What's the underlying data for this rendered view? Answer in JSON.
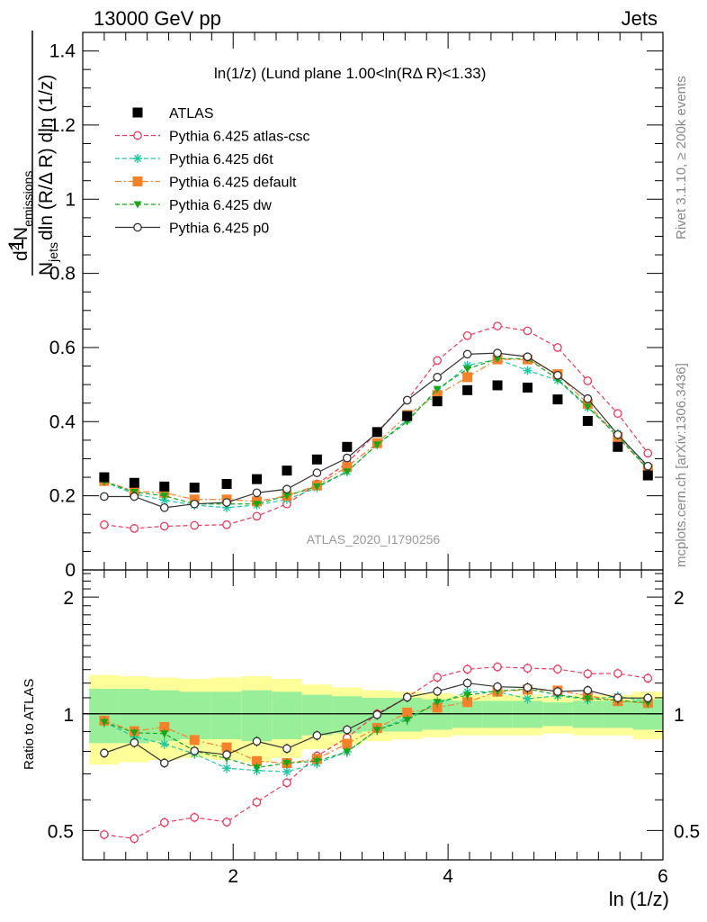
{
  "header": {
    "left": "13000 GeV pp",
    "right": "Jets"
  },
  "plot_title": "ln(1/z) (Lund plane 1.00<ln(RΔ R)<1.33)",
  "y_label": "1 / N_jets dln (R/Δ R) dln (1/z) · d² N_emissions",
  "y_label_parts": {
    "one": "1",
    "njets": "N",
    "njets_sub": "jets",
    "den_rest": "dln (R/Δ R) dln (1/z)",
    "d2": "d",
    "d2_sup": "2",
    "nem": "N",
    "nem_sub": "emissions"
  },
  "x_label": "ln (1/z)",
  "ratio_label": "Ratio to ATLAS",
  "side_text_top": "Rivet 3.1.10, ≥ 200k events",
  "side_text_bottom": "mcplots.cern.ch [arXiv:1306.3436]",
  "watermark": "ATLAS_2020_I1790256",
  "chart_data": {
    "type": "scatter",
    "x": [
      0.8,
      1.08,
      1.36,
      1.64,
      1.94,
      2.22,
      2.5,
      2.78,
      3.06,
      3.34,
      3.62,
      3.9,
      4.18,
      4.46,
      4.74,
      5.02,
      5.3,
      5.58,
      5.86
    ],
    "xlim": [
      0.6,
      6.0
    ],
    "ylim": [
      0,
      1.45
    ],
    "ratio_ylim": [
      0.42,
      2.35
    ],
    "x_ticks": [
      2,
      4,
      6
    ],
    "y_ticks": [
      0,
      0.2,
      0.4,
      0.6,
      0.8,
      1,
      1.2,
      1.4
    ],
    "y_tick_labels": [
      "0",
      "0.2",
      "0.4",
      "0.6",
      "0.8",
      "1",
      "1.2",
      "1.4"
    ],
    "ratio_ticks": [
      0.5,
      1,
      2
    ],
    "ratio_tick_labels": [
      "0.5",
      "1",
      "2"
    ],
    "ratio_band_inner": [
      0.16,
      0.16,
      0.15,
      0.14,
      0.14,
      0.15,
      0.14,
      0.12,
      0.11,
      0.1,
      0.1,
      0.09,
      0.08,
      0.08,
      0.08,
      0.07,
      0.08,
      0.08,
      0.09
    ],
    "ratio_band_outer": [
      0.26,
      0.25,
      0.24,
      0.23,
      0.24,
      0.25,
      0.23,
      0.19,
      0.17,
      0.15,
      0.14,
      0.13,
      0.12,
      0.12,
      0.12,
      0.11,
      0.12,
      0.12,
      0.14
    ],
    "legend_position": "top-left",
    "series": [
      {
        "name": "ATLAS",
        "color": "#000000",
        "marker": "square",
        "line": "none",
        "values": [
          0.25,
          0.235,
          0.225,
          0.222,
          0.232,
          0.245,
          0.268,
          0.298,
          0.332,
          0.372,
          0.415,
          0.455,
          0.485,
          0.498,
          0.492,
          0.46,
          0.402,
          0.332,
          0.255
        ]
      },
      {
        "name": "Pythia 6.425 atlas-csc",
        "color": "#e8395e",
        "marker": "open-circle",
        "line": "dashed",
        "values": [
          0.122,
          0.112,
          0.118,
          0.12,
          0.122,
          0.145,
          0.178,
          0.232,
          0.288,
          0.372,
          0.458,
          0.565,
          0.632,
          0.658,
          0.645,
          0.6,
          0.51,
          0.422,
          0.315
        ]
      },
      {
        "name": "Pythia 6.425 d6t",
        "color": "#1fc7a4",
        "marker": "star",
        "line": "dashed",
        "values": [
          0.238,
          0.205,
          0.188,
          0.175,
          0.168,
          0.175,
          0.19,
          0.222,
          0.265,
          0.338,
          0.405,
          0.482,
          0.552,
          0.568,
          0.538,
          0.512,
          0.438,
          0.368,
          0.275
        ]
      },
      {
        "name": "Pythia 6.425 default",
        "color": "#f5822a",
        "marker": "square",
        "line": "dashdot",
        "values": [
          0.24,
          0.212,
          0.208,
          0.19,
          0.19,
          0.185,
          0.2,
          0.228,
          0.278,
          0.342,
          0.418,
          0.472,
          0.52,
          0.568,
          0.568,
          0.528,
          0.448,
          0.358,
          0.272
        ]
      },
      {
        "name": "Pythia 6.425 dw",
        "color": "#1ba51b",
        "marker": "down-triangle",
        "line": "dashed",
        "values": [
          0.238,
          0.21,
          0.2,
          0.178,
          0.178,
          0.178,
          0.2,
          0.225,
          0.265,
          0.338,
          0.4,
          0.488,
          0.542,
          0.57,
          0.57,
          0.515,
          0.44,
          0.36,
          0.272
        ]
      },
      {
        "name": "Pythia 6.425 p0",
        "color": "#333333",
        "marker": "open-circle",
        "line": "solid",
        "values": [
          0.198,
          0.198,
          0.168,
          0.178,
          0.182,
          0.208,
          0.218,
          0.262,
          0.302,
          0.37,
          0.458,
          0.52,
          0.582,
          0.585,
          0.575,
          0.525,
          0.462,
          0.365,
          0.28
        ]
      }
    ]
  }
}
